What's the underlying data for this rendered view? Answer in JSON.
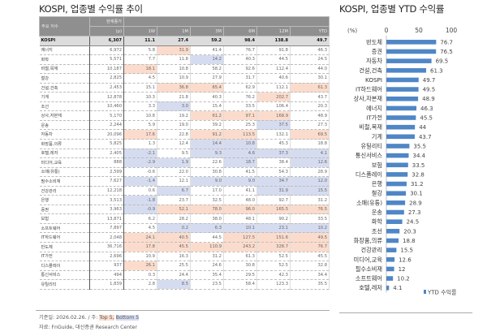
{
  "table_title": "KOSPI, 업종별 수익률 추이",
  "table": {
    "header_name": "주요 지수",
    "header_price_top": "현재종가",
    "header_price_unit": "(p)",
    "periods": [
      "1W",
      "1M",
      "3M",
      "6M",
      "12M",
      "YTD"
    ],
    "rows": [
      [
        "KOSPI",
        "6,307",
        "11.1",
        "27.4",
        "59.2",
        "98.4",
        "138.8",
        "49.7"
      ],
      [
        "에너지",
        "6,972",
        "5.8",
        "31.9",
        "41.4",
        "76.7",
        "91.8",
        "46.3"
      ],
      [
        "화학",
        "5,571",
        "7.7",
        "11.8",
        "14.2",
        "40.3",
        "44.5",
        "24.5"
      ],
      [
        "비철,목재",
        "10,187",
        "18.1",
        "10.8",
        "58.2",
        "92.6",
        "112.4",
        "44.0"
      ],
      [
        "철강",
        "2,825",
        "4.5",
        "10.9",
        "27.9",
        "31.7",
        "40.6",
        "30.1"
      ],
      [
        "건설,건축",
        "2,453",
        "15.1",
        "36.8",
        "65.4",
        "62.9",
        "112.1",
        "61.3"
      ],
      [
        "기계",
        "12,878",
        "10.3",
        "21.8",
        "40.3",
        "76.2",
        "202.7",
        "43.7"
      ],
      [
        "조선",
        "10,460",
        "3.3",
        "3.0",
        "15.4",
        "33.5",
        "106.4",
        "20.3"
      ],
      [
        "상사,자본재",
        "5,170",
        "10.8",
        "19.2",
        "61.2",
        "97.1",
        "168.9",
        "48.9"
      ],
      [
        "운송",
        "2,244",
        "5.9",
        "19.0",
        "39.2",
        "25.3",
        "37.5",
        "27.3"
      ],
      [
        "자동차",
        "20,096",
        "17.6",
        "22.8",
        "91.2",
        "113.5",
        "132.1",
        "69.5"
      ],
      [
        "화장품,의류",
        "5,825",
        "1.3",
        "12.4",
        "14.4",
        "10.8",
        "45.3",
        "18.8"
      ],
      [
        "호텔,레저",
        "2,405",
        "-2.1",
        "9.5",
        "9.3",
        "4.6",
        "37.3",
        "4.1"
      ],
      [
        "미디어,교육",
        "888",
        "-2.9",
        "1.9",
        "22.6",
        "18.7",
        "38.4",
        "12.6"
      ],
      [
        "소매(유통)",
        "2,599",
        "-0.6",
        "22.0",
        "30.8",
        "41.5",
        "54.3",
        "28.9"
      ],
      [
        "필수소비재",
        "7,627",
        "-1.4",
        "12.1",
        "9.0",
        "9.0",
        "34.7",
        "12.0"
      ],
      [
        "건강관리",
        "12,218",
        "0.6",
        "6.7",
        "17.0",
        "41.1",
        "31.9",
        "15.5"
      ],
      [
        "은행",
        "3,513",
        "-1.8",
        "23.7",
        "32.5",
        "48.0",
        "92.7",
        "31.2"
      ],
      [
        "증권",
        "3,963",
        "-0.9",
        "52.1",
        "78.0",
        "96.0",
        "165.5",
        "76.5"
      ],
      [
        "보험",
        "13,871",
        "6.2",
        "28.2",
        "38.0",
        "48.1",
        "90.2",
        "33.5"
      ],
      [
        "소프트웨어",
        "7,897",
        "4.5",
        "0.2",
        "6.3",
        "10.1",
        "23.1",
        "10.2"
      ],
      [
        "IT하드웨어",
        "2,048",
        "24.1",
        "40.5",
        "44.5",
        "127.5",
        "151.6",
        "49.5"
      ],
      [
        "반도체",
        "36,716",
        "17.8",
        "45.5",
        "110.9",
        "243.2",
        "328.7",
        "76.7"
      ],
      [
        "IT가전",
        "2,696",
        "10.9",
        "16.3",
        "31.2",
        "61.3",
        "52.5",
        "45.5"
      ],
      [
        "디스플레이",
        "937",
        "26.1",
        "25.5",
        "24.6",
        "30.8",
        "52.5",
        "32.8"
      ],
      [
        "통신서비스",
        "494",
        "0.3",
        "24.4",
        "35.4",
        "29.5",
        "42.3",
        "34.4"
      ],
      [
        "유틸리티",
        "1,839",
        "2.8",
        "8.5",
        "23.5",
        "58.4",
        "123.3",
        "35.5"
      ]
    ]
  },
  "notes": {
    "prefix": "기준일: 2026.02.26. / 주: ",
    "top": "Top 5,",
    "bottom": "Bottom 5",
    "source": "자료: FnGuide, 대신증권 Research Center"
  },
  "colors": {
    "top": "#fbdccc",
    "bottom": "#d6dcf0",
    "bar": "#4f86c6"
  },
  "chart_data": {
    "type": "bar",
    "orientation": "horizontal",
    "title": "KOSPI, 업종별 YTD 수익률",
    "ylabel": "(%)",
    "xlim": [
      0,
      100
    ],
    "xticks": [
      0,
      50,
      100
    ],
    "legend": "YTD 수익률",
    "legend_position": "bottom-right",
    "categories": [
      "반도체",
      "증권",
      "자동차",
      "건설,건축",
      "KOSPI",
      "IT하드웨어",
      "상사,자본재",
      "에너지",
      "IT가전",
      "비철,목재",
      "기계",
      "유틸리티",
      "통신서비스",
      "보험",
      "디스플레이",
      "은행",
      "철강",
      "소매(유통)",
      "운송",
      "화학",
      "조선",
      "화장품,의류",
      "건강관리",
      "미디어,교육",
      "필수소비재",
      "소프트웨어",
      "호텔,레저"
    ],
    "values": [
      76.7,
      76.5,
      69.5,
      61.3,
      49.7,
      49.5,
      48.9,
      46.3,
      45.5,
      44.0,
      43.7,
      35.5,
      34.4,
      33.5,
      32.8,
      31.2,
      30.1,
      28.9,
      27.3,
      24.5,
      20.3,
      18.8,
      15.5,
      12.6,
      12.0,
      10.2,
      4.1
    ]
  }
}
